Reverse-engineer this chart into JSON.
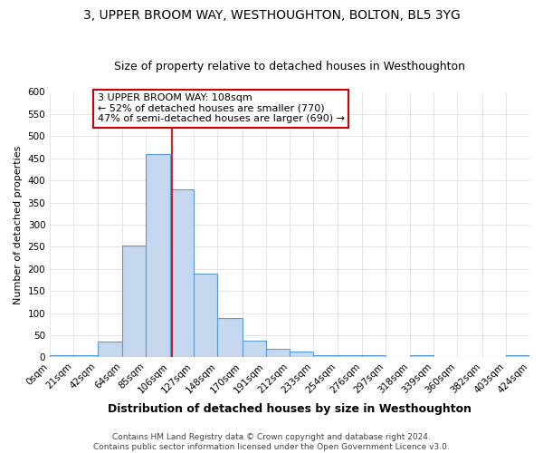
{
  "title": "3, UPPER BROOM WAY, WESTHOUGHTON, BOLTON, BL5 3YG",
  "subtitle": "Size of property relative to detached houses in Westhoughton",
  "xlabel": "Distribution of detached houses by size in Westhoughton",
  "ylabel": "Number of detached properties",
  "bin_edges": [
    0,
    21,
    42,
    64,
    85,
    106,
    127,
    148,
    170,
    191,
    212,
    233,
    254,
    276,
    297,
    318,
    339,
    360,
    382,
    403,
    424
  ],
  "bin_labels": [
    "0sqm",
    "21sqm",
    "42sqm",
    "64sqm",
    "85sqm",
    "106sqm",
    "127sqm",
    "148sqm",
    "170sqm",
    "191sqm",
    "212sqm",
    "233sqm",
    "254sqm",
    "276sqm",
    "297sqm",
    "318sqm",
    "339sqm",
    "360sqm",
    "382sqm",
    "403sqm",
    "424sqm"
  ],
  "bar_heights": [
    5,
    5,
    35,
    252,
    460,
    380,
    190,
    90,
    37,
    20,
    13,
    6,
    5,
    5,
    0,
    5,
    0,
    0,
    0,
    5
  ],
  "bar_color": "#c5d8f0",
  "bar_edge_color": "#5b9bd5",
  "red_line_x": 108,
  "ylim": [
    0,
    600
  ],
  "yticks": [
    0,
    50,
    100,
    150,
    200,
    250,
    300,
    350,
    400,
    450,
    500,
    550,
    600
  ],
  "annotation_line1": "3 UPPER BROOM WAY: 108sqm",
  "annotation_line2": "← 52% of detached houses are smaller (770)",
  "annotation_line3": "47% of semi-detached houses are larger (690) →",
  "annotation_box_color": "#ffffff",
  "annotation_box_edge": "#cc0000",
  "footer1": "Contains HM Land Registry data © Crown copyright and database right 2024.",
  "footer2": "Contains public sector information licensed under the Open Government Licence v3.0.",
  "background_color": "#ffffff",
  "plot_bg_color": "#ffffff",
  "grid_color": "#e0e0e0",
  "title_fontsize": 10,
  "subtitle_fontsize": 9,
  "xlabel_fontsize": 9,
  "ylabel_fontsize": 8,
  "tick_fontsize": 7.5,
  "annotation_fontsize": 8,
  "footer_fontsize": 6.5
}
